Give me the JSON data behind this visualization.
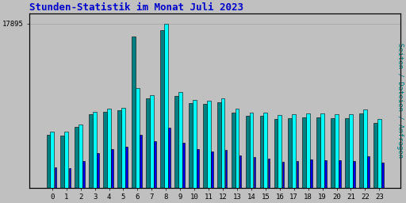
{
  "title": "Stunden-Statistik im Monat Juli 2023",
  "ylabel_right": "Seiten / Dateien / Anfragen",
  "ytick_label": "17895",
  "hours": [
    0,
    1,
    2,
    3,
    4,
    5,
    6,
    7,
    8,
    9,
    10,
    11,
    12,
    13,
    14,
    15,
    16,
    17,
    18,
    19,
    20,
    21,
    22,
    23
  ],
  "seiten": [
    6100,
    6100,
    6900,
    8300,
    8600,
    8700,
    10900,
    10100,
    17895,
    10400,
    9600,
    9500,
    9700,
    8600,
    8200,
    8200,
    7900,
    8000,
    8100,
    8100,
    8000,
    8000,
    8500,
    7500
  ],
  "dateien": [
    5800,
    5700,
    6600,
    8000,
    8300,
    8400,
    16500,
    9700,
    17200,
    10000,
    9200,
    9100,
    9300,
    8200,
    7800,
    7800,
    7500,
    7600,
    7700,
    7700,
    7600,
    7600,
    8100,
    7100
  ],
  "anfragen": [
    2200,
    2100,
    2900,
    3800,
    4200,
    4500,
    5800,
    5100,
    6500,
    4900,
    4200,
    3900,
    4100,
    3500,
    3300,
    3200,
    2800,
    2900,
    3100,
    3000,
    3000,
    2900,
    3400,
    2700
  ],
  "color_seiten": "#00FFFF",
  "color_dateien": "#008080",
  "color_anfragen": "#0000EE",
  "background_color": "#C0C0C0",
  "plot_bg_color": "#C0C0C0",
  "title_color": "#0000CC",
  "title_fontsize": 9,
  "ylabel_right_color": "#008080",
  "grid_color": "#AAAAAA",
  "border_color": "#000000",
  "bar_width": 0.27,
  "ylim_max": 19000
}
